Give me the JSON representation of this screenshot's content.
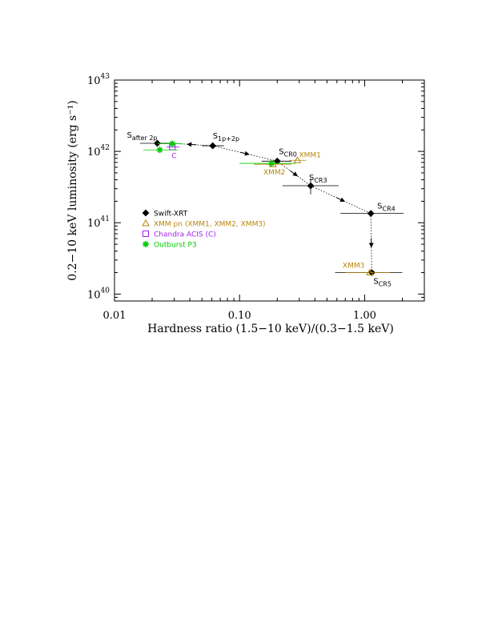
{
  "chart_data": {
    "type": "scatter",
    "x_scale": "log",
    "y_scale": "log",
    "xlim": [
      0.01,
      3.0
    ],
    "ylim": [
      8e+39,
      1e+43
    ],
    "xlabel": "Hardness ratio (1.5−10 keV)/(0.3−1.5 keV)",
    "ylabel": "0.2−10 keV luminosity (erg s⁻¹)",
    "x_ticks": [
      {
        "value": 0.01,
        "label": "0.01"
      },
      {
        "value": 0.1,
        "label": "0.10"
      },
      {
        "value": 1.0,
        "label": "1.00"
      }
    ],
    "y_ticks": [
      {
        "value": 1e+40,
        "base": "10",
        "exp": "40"
      },
      {
        "value": 1e+41,
        "base": "10",
        "exp": "41"
      },
      {
        "value": 1e+42,
        "base": "10",
        "exp": "42"
      },
      {
        "value": 1e+43,
        "base": "10",
        "exp": "43"
      }
    ],
    "series": [
      {
        "name": "Swift-XRT",
        "marker": "diamond",
        "color": "#000000",
        "points": [
          {
            "id": "after2p",
            "x": 0.022,
            "y": 1.3e+42,
            "xerr": [
              0.016,
              0.03
            ],
            "label": "S",
            "sub": "after 2p"
          },
          {
            "id": "1p2p",
            "x": 0.061,
            "y": 1.2e+42,
            "xerr": [
              0.05,
              0.075
            ],
            "label": "S",
            "sub": "1p+2p"
          },
          {
            "id": "CR0",
            "x": 0.2,
            "y": 7.3e+41,
            "xerr": [
              0.15,
              0.26
            ],
            "label": "S",
            "sub": "CR0"
          },
          {
            "id": "CR3",
            "x": 0.37,
            "y": 3.3e+41,
            "xerr": [
              0.22,
              0.62
            ],
            "yerr": [
              2.5e+41,
              4.2e+41
            ],
            "label": "S",
            "sub": "CR3"
          },
          {
            "id": "CR4",
            "x": 1.12,
            "y": 1.35e+41,
            "xerr": [
              0.64,
              2.05
            ],
            "label": "S",
            "sub": "CR4"
          },
          {
            "id": "CR5",
            "x": 1.14,
            "y": 2e+40,
            "xerr": [
              0.58,
              2.0
            ],
            "label": "S",
            "sub": "CR5"
          }
        ]
      },
      {
        "name": "XMM pn (XMM1, XMM2, XMM3)",
        "marker": "triangle",
        "color": "#b8860b",
        "points": [
          {
            "id": "XMM1",
            "x": 0.29,
            "y": 7.5e+41,
            "xerr": [
              0.25,
              0.34
            ],
            "label": "XMM1"
          },
          {
            "id": "XMM2",
            "x": 0.185,
            "y": 6.6e+41,
            "xerr": [
              0.13,
              0.26
            ],
            "label": "XMM2"
          },
          {
            "id": "XMM3",
            "x": 1.1,
            "y": 2e+40,
            "xerr": [
              0.7,
              1.6
            ],
            "label": "XMM3"
          }
        ]
      },
      {
        "name": "Chandra ACIS (C)",
        "marker": "square",
        "color": "#a020f0",
        "points": [
          {
            "id": "C",
            "x": 0.029,
            "y": 1.15e+42,
            "xerr": [
              0.026,
              0.033
            ],
            "label": "C"
          }
        ]
      },
      {
        "name": "Outburst P3",
        "marker": "star",
        "color": "#00cc00",
        "points": [
          {
            "x": 0.029,
            "y": 1.28e+42,
            "xerr": [
              0.022,
              0.035
            ]
          },
          {
            "x": 0.023,
            "y": 1.05e+42,
            "xerr": [
              0.017,
              0.032
            ]
          },
          {
            "x": 0.18,
            "y": 6.8e+41,
            "xerr": [
              0.1,
              0.28
            ]
          }
        ]
      }
    ],
    "path_arrows": [
      {
        "from": [
          0.061,
          1.2e+42
        ],
        "to": [
          0.028,
          1.3e+42
        ]
      },
      {
        "from": [
          0.061,
          1.2e+42
        ],
        "to": [
          0.2,
          7.3e+41
        ]
      },
      {
        "from": [
          0.2,
          7.3e+41
        ],
        "to": [
          0.37,
          3.3e+41
        ]
      },
      {
        "from": [
          0.37,
          3.3e+41
        ],
        "to": [
          1.12,
          1.35e+41
        ]
      },
      {
        "from": [
          1.12,
          1.35e+41
        ],
        "to": [
          1.14,
          2e+40
        ]
      }
    ],
    "legend_position": "middle-left"
  }
}
